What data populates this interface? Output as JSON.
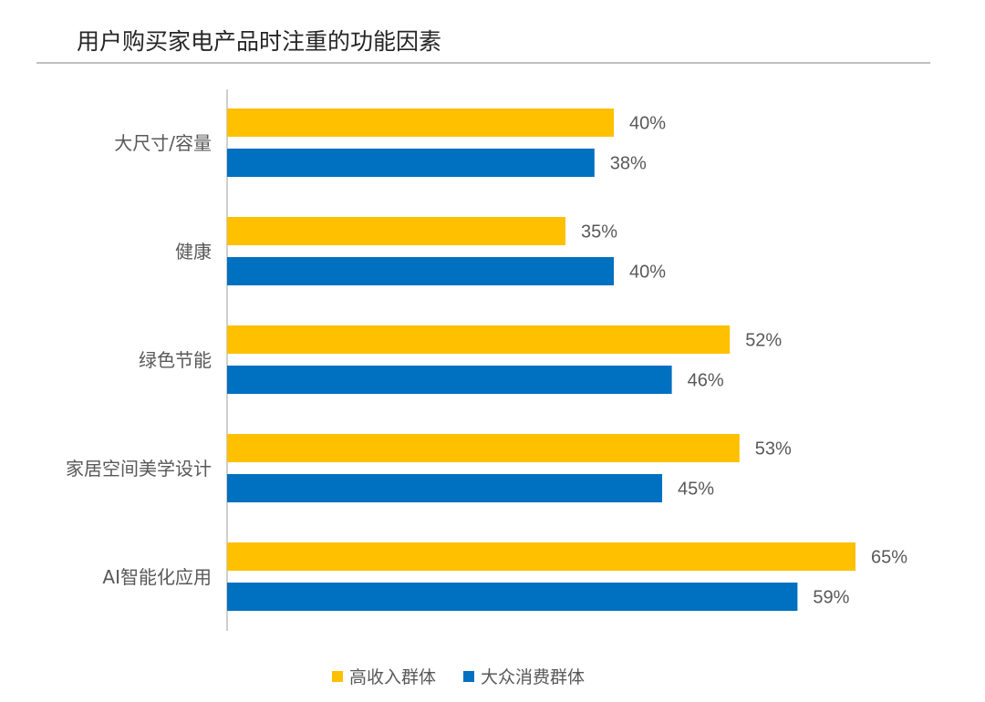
{
  "chart_data": {
    "type": "bar",
    "orientation": "horizontal",
    "title": "用户购买家电产品时注重的功能因素",
    "categories": [
      "大尺寸/容量",
      "健康",
      "绿色节能",
      "家居空间美学设计",
      "AI智能化应用"
    ],
    "series": [
      {
        "name": "高收入群体",
        "color": "#FFC000",
        "values": [
          40,
          35,
          52,
          53,
          65
        ]
      },
      {
        "name": "大众消费群体",
        "color": "#0070C0",
        "values": [
          38,
          40,
          46,
          45,
          59
        ]
      }
    ],
    "value_format": "percent",
    "xlim": [
      0,
      70
    ],
    "grid": false,
    "legend": "bottom"
  }
}
